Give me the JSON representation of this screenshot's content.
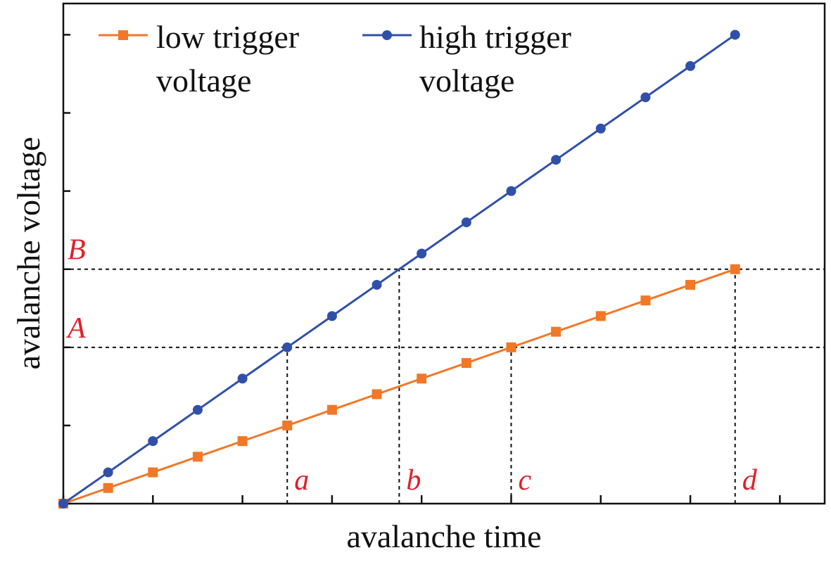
{
  "chart_data": {
    "type": "line",
    "xlabel": "avalanche time",
    "ylabel": "avalanche voltage",
    "x": [
      0,
      1,
      2,
      3,
      4,
      5,
      6,
      7,
      8,
      9,
      10,
      11,
      12,
      13,
      14,
      15
    ],
    "series": [
      {
        "name": "low trigger voltage",
        "color": "#f07828",
        "marker": "square",
        "values": [
          0,
          0.2,
          0.4,
          0.6,
          0.8,
          1.0,
          1.2,
          1.4,
          1.6,
          1.8,
          2.0,
          2.2,
          2.4,
          2.6,
          2.8,
          3.0
        ]
      },
      {
        "name": "high trigger voltage",
        "color": "#3050a8",
        "marker": "circle",
        "values": [
          0,
          0.4,
          0.8,
          1.2,
          1.6,
          2.0,
          2.4,
          2.8,
          3.2,
          3.6,
          4.0,
          4.4,
          4.8,
          5.2,
          5.6,
          6.0
        ]
      }
    ],
    "xlim": [
      0,
      17
    ],
    "ylim": [
      0,
      6.4
    ],
    "xticks": [
      0,
      2,
      4,
      6,
      8,
      10,
      12,
      14,
      16
    ],
    "yticks": [
      0,
      1,
      2,
      3,
      4,
      5,
      6
    ],
    "hlines": [
      {
        "label": "A",
        "value": 2
      },
      {
        "label": "B",
        "value": 3
      }
    ],
    "vlines": [
      {
        "label": "a",
        "x": 5,
        "y": 2
      },
      {
        "label": "b",
        "x": 7.5,
        "y": 3
      },
      {
        "label": "c",
        "x": 10,
        "y": 2
      },
      {
        "label": "d",
        "x": 15,
        "y": 3
      }
    ],
    "legend_position": "top-left"
  }
}
